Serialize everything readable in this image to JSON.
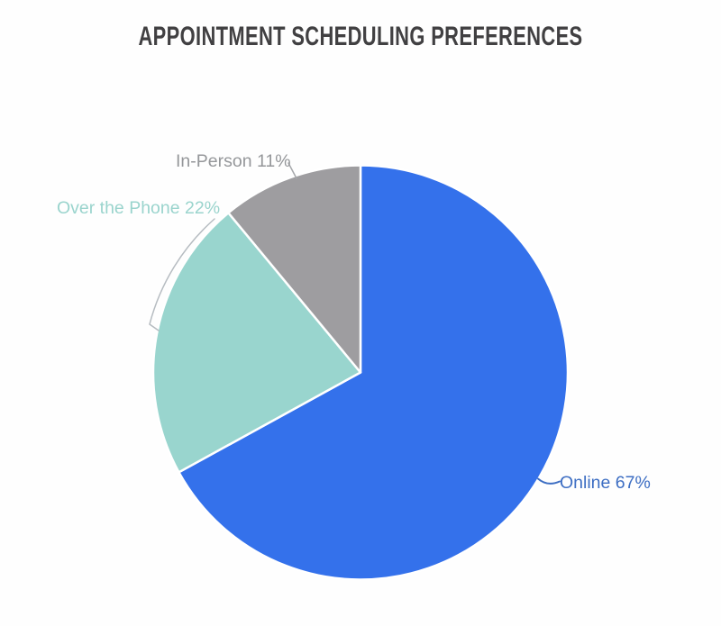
{
  "page": {
    "background": "#FEFEFE"
  },
  "title": {
    "text": "APPOINTMENT SCHEDULING PREFERENCES",
    "color": "#414042"
  },
  "chart_data": {
    "type": "pie",
    "title": "APPOINTMENT SCHEDULING PREFERENCES",
    "categories": [
      "Online",
      "Over the Phone",
      "In-Person"
    ],
    "values": [
      67,
      22,
      11
    ],
    "unit": "%",
    "start_angle_deg": 0,
    "direction": "clockwise",
    "legend_position": "none",
    "label_style": "outside-callout",
    "slices": [
      {
        "label": "Online",
        "value": 67,
        "display": "Online 67%",
        "color": "#3471EB",
        "label_color": "#3D6EC3"
      },
      {
        "label": "Over the Phone",
        "value": 22,
        "display": "Over the Phone 22%",
        "color": "#99D5CE",
        "label_color": "#9AD4CD"
      },
      {
        "label": "In-Person",
        "value": 11,
        "display": "In-Person 11%",
        "color": "#9E9DA0",
        "label_color": "#95979A"
      }
    ],
    "divider_color": "#FFFFFF",
    "leader_line_colors": {
      "online": "#3D6EC3",
      "over_the_phone": "#B6BCC1",
      "in_person": "#A5A7AA"
    }
  }
}
